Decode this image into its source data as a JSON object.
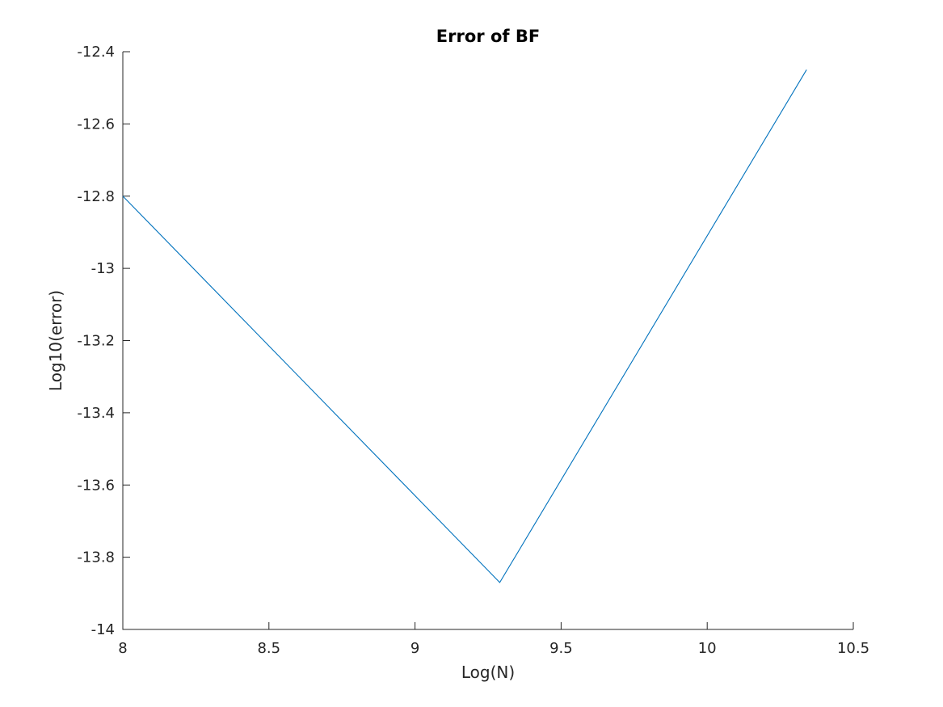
{
  "chart_data": {
    "type": "line",
    "title": "Error of BF",
    "xlabel": "Log(N)",
    "ylabel": "Log10(error)",
    "xlim": [
      8,
      10.5
    ],
    "ylim": [
      -14,
      -12.4
    ],
    "xticks": [
      8,
      8.5,
      9,
      9.5,
      10,
      10.5
    ],
    "xtick_labels": [
      "8",
      "8.5",
      "9",
      "9.5",
      "10",
      "10.5"
    ],
    "yticks": [
      -14,
      -13.8,
      -13.6,
      -13.4,
      -13.2,
      -13,
      -12.8,
      -12.6,
      -12.4
    ],
    "ytick_labels": [
      "-14",
      "-13.8",
      "-13.6",
      "-13.4",
      "-13.2",
      "-13",
      "-12.8",
      "-12.6",
      "-12.4"
    ],
    "grid": false,
    "series": [
      {
        "color": "#0072BD",
        "x": [
          8.0,
          9.29,
          10.34
        ],
        "y": [
          -12.8,
          -13.87,
          -12.45
        ]
      }
    ]
  }
}
